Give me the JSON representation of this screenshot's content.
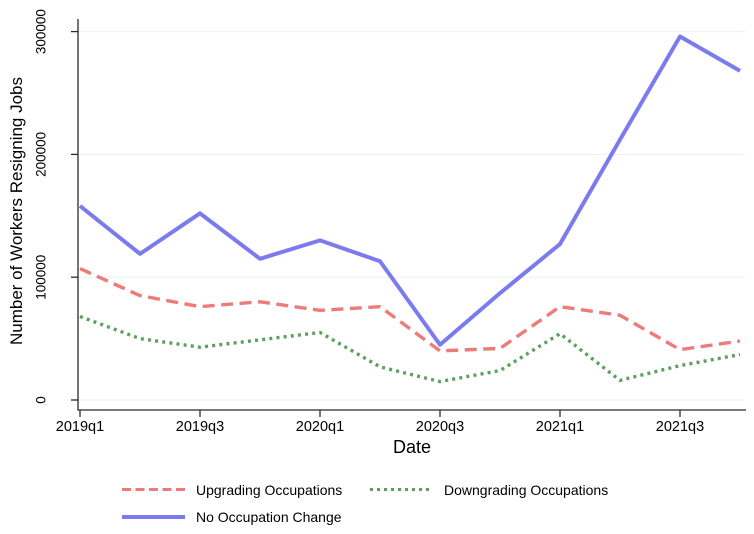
{
  "chart_data": {
    "type": "line",
    "x": [
      "2019q1",
      "2019q2",
      "2019q3",
      "2019q4",
      "2020q1",
      "2020q2",
      "2020q3",
      "2020q4",
      "2021q1",
      "2021q2",
      "2021q3",
      "2021q4"
    ],
    "series": [
      {
        "name": "Upgrading Occupations",
        "line_style": "dashed",
        "color": "#ee7a7a",
        "values": [
          107000,
          85000,
          76000,
          80000,
          73000,
          76000,
          40000,
          42000,
          76000,
          69000,
          41000,
          48000
        ]
      },
      {
        "name": "Downgrading Occupations",
        "line_style": "dotted",
        "color": "#5da05d",
        "values": [
          68000,
          50000,
          43000,
          49000,
          55000,
          27000,
          15000,
          24000,
          54000,
          16000,
          28000,
          37000
        ]
      },
      {
        "name": "No Occupation Change",
        "line_style": "solid",
        "color": "#7b7bef",
        "values": [
          158000,
          119000,
          152000,
          115000,
          130000,
          113000,
          45000,
          87000,
          127000,
          212000,
          296000,
          268000
        ]
      }
    ],
    "title": "",
    "xlabel": "Date",
    "ylabel": "Number of Workers Resigning Jobs",
    "ylim": [
      0,
      310000
    ],
    "yticks": [
      0,
      100000,
      200000,
      300000
    ],
    "ytick_labels": [
      "0",
      "100000",
      "200000",
      "300000"
    ],
    "x_tick_indices": [
      0,
      2,
      4,
      6,
      8,
      10
    ],
    "x_tick_labels": [
      "2019q1",
      "2019q3",
      "2020q1",
      "2020q3",
      "2021q1",
      "2021q3"
    ],
    "grid": true,
    "grid_color": "#eaf2f1",
    "axis_color": "#2b2b2b",
    "text_color": "#000000",
    "legend_position": "bottom"
  },
  "legend": {
    "items": [
      {
        "label": "Upgrading Occupations",
        "color": "#ee7a7a",
        "line_style": "dashed"
      },
      {
        "label": "Downgrading Occupations",
        "color": "#5da05d",
        "line_style": "dotted"
      },
      {
        "label": "No Occupation Change",
        "color": "#7b7bef",
        "line_style": "solid"
      }
    ]
  }
}
